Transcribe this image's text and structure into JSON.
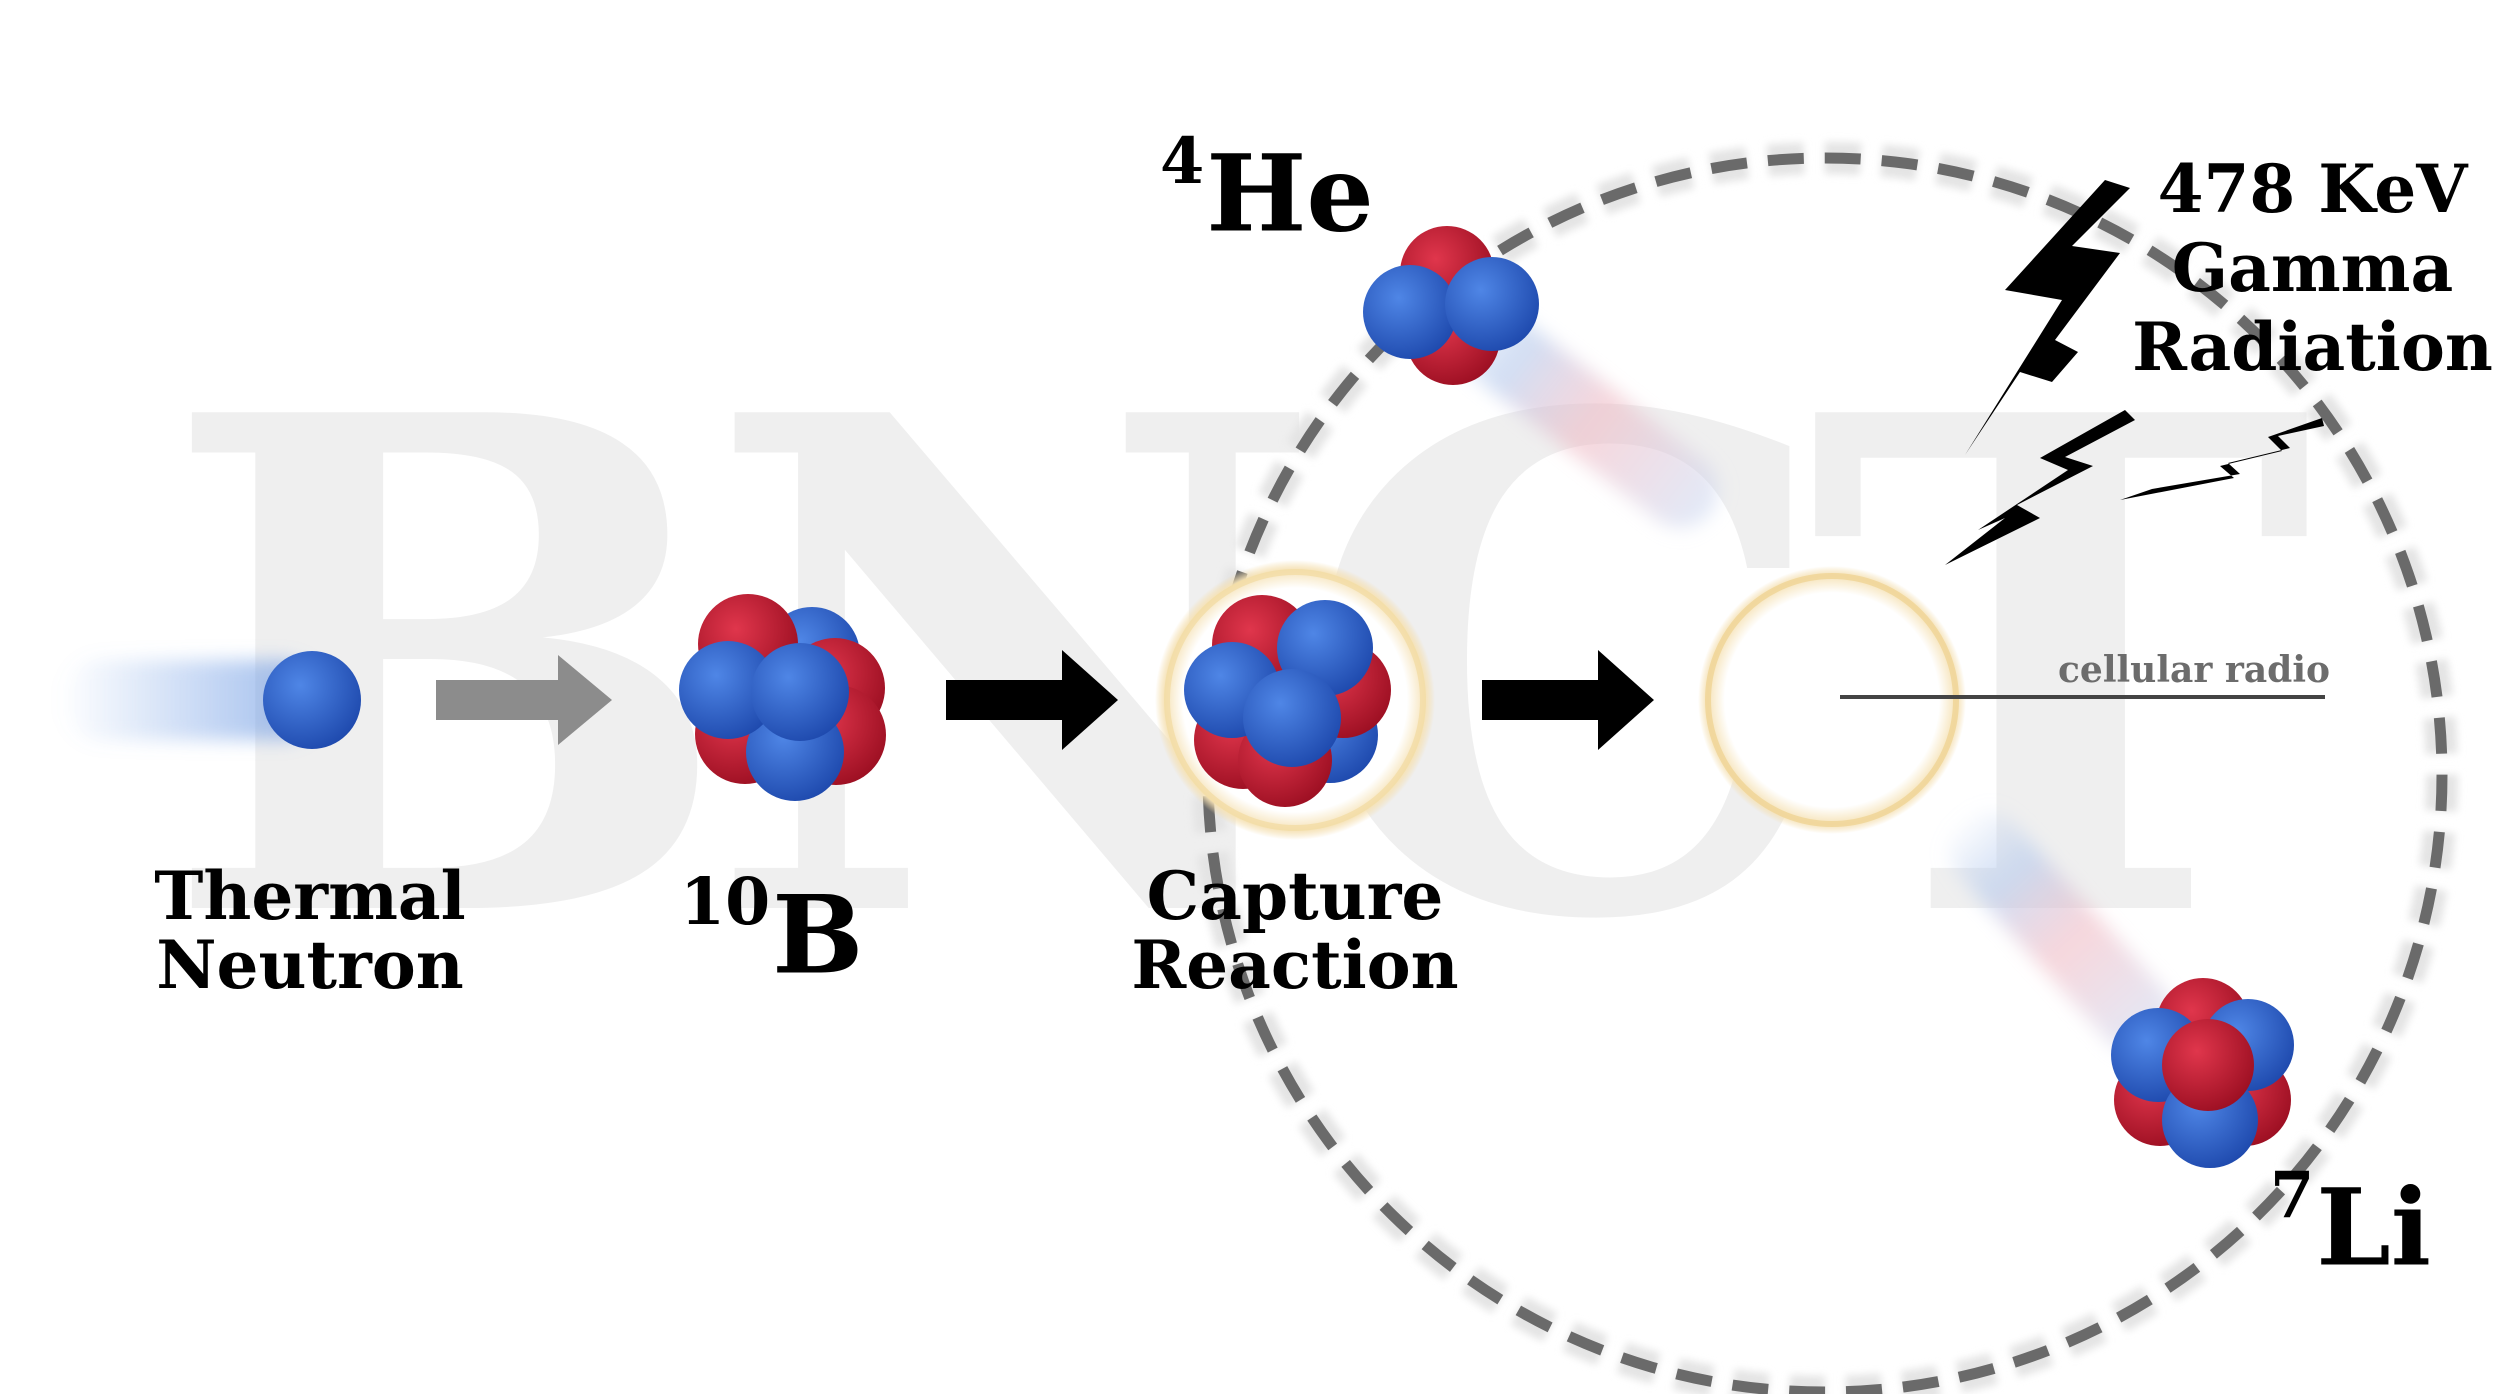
{
  "watermark": {
    "text": "BNCT"
  },
  "labels": {
    "thermal_neutron": [
      "Thermal",
      "Neutron"
    ],
    "boron": {
      "mass": "10",
      "symbol": "B"
    },
    "capture_reaction": [
      "Capture",
      "Reaction"
    ],
    "helium": {
      "mass": "4",
      "symbol": "He"
    },
    "lithium": {
      "mass": "7",
      "symbol": "Li"
    },
    "gamma": [
      "478 KeV",
      "Gamma",
      "Radiation"
    ],
    "cellular_radio": "cellular radio"
  },
  "colors": {
    "neutron": "#2e5fc8",
    "proton": "#c2132b",
    "arrow_gray": "#8c8c8c",
    "arrow_black": "#000000",
    "watermark": "#efefef",
    "ring": "#6a6a6a",
    "glow": "#e8c67a"
  },
  "icons": [
    "lightning-bolt-icon"
  ]
}
